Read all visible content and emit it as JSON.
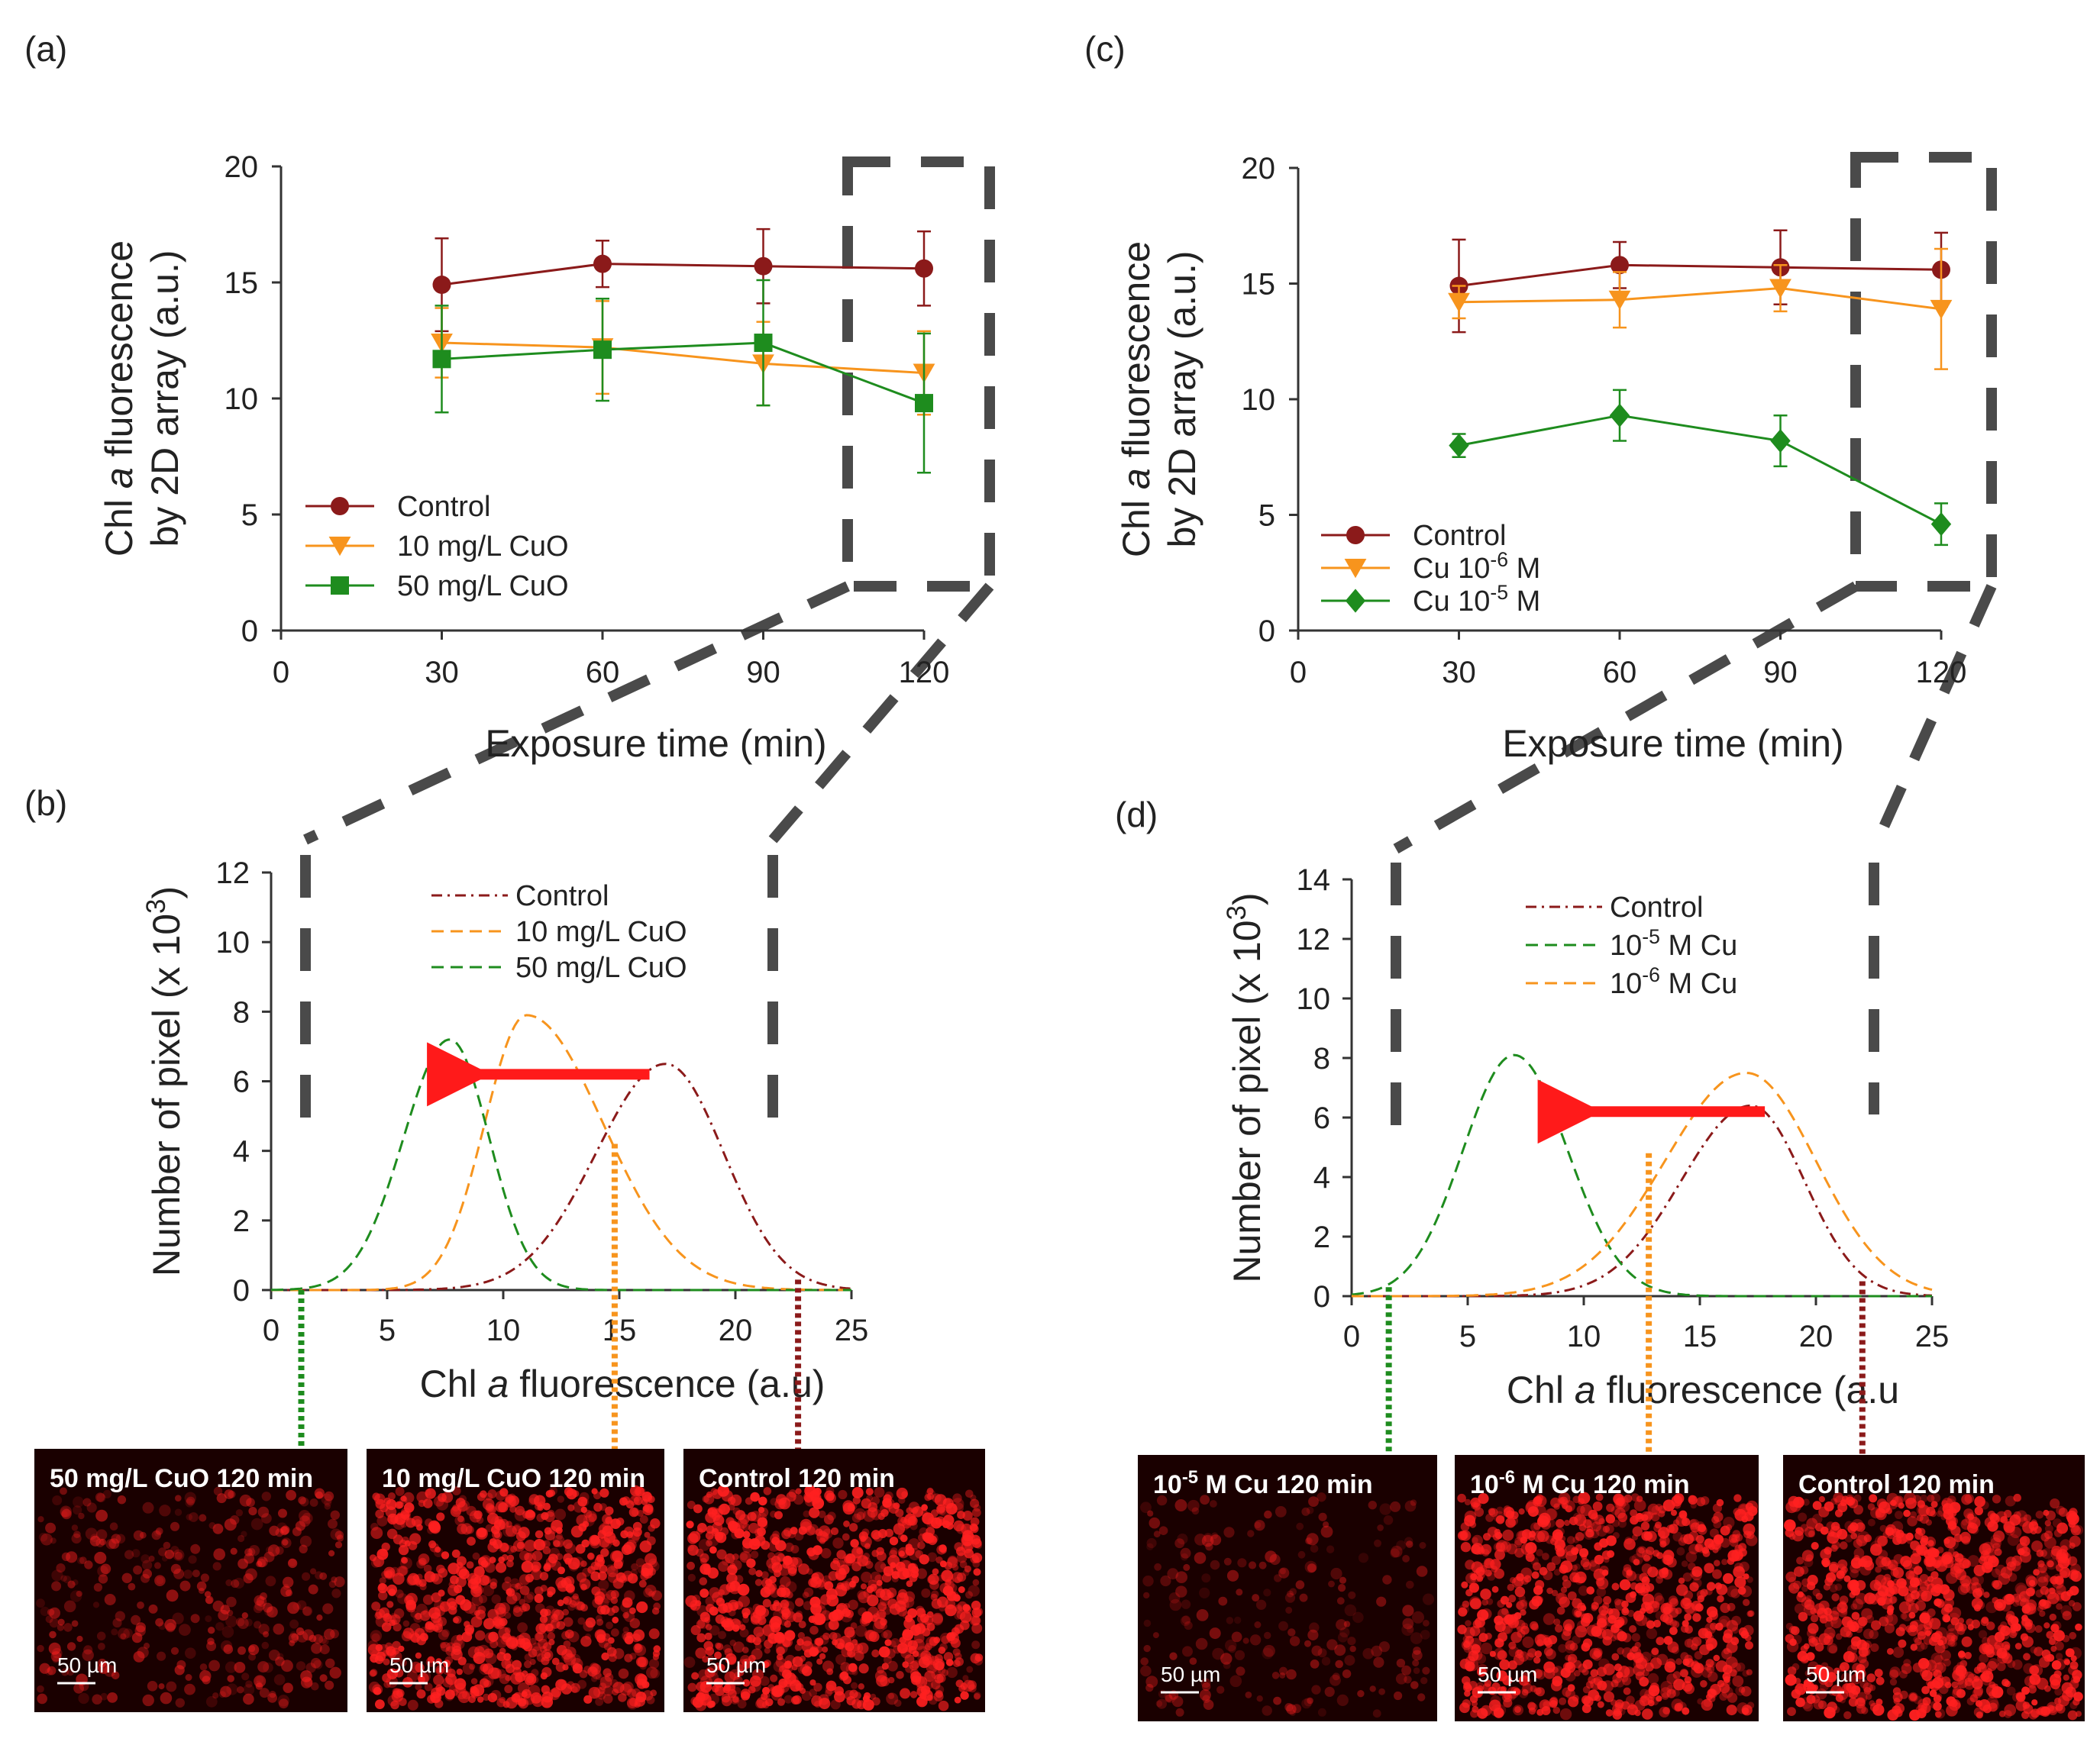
{
  "colors": {
    "control": "#8b1a1a",
    "low": "#f7941d",
    "high": "#1e8c1e",
    "arrow": "#ff1a1a",
    "zoom_box": "#4a4a4a",
    "micro_bg": "#1a0000",
    "micro_cell": "#ff2020"
  },
  "panels": {
    "a": {
      "letter": "(a)"
    },
    "b": {
      "letter": "(b)"
    },
    "c": {
      "letter": "(c)"
    },
    "d": {
      "letter": "(d)"
    }
  },
  "chart_data": [
    {
      "id": "a",
      "type": "line",
      "ylabel_line1": "Chl a fluorescence",
      "ylabel_line2": "by 2D array (a.u.)",
      "xlabel": "Exposure time (min)",
      "x": [
        30,
        60,
        90,
        120
      ],
      "xlim": [
        0,
        120
      ],
      "ylim": [
        0,
        20
      ],
      "xticks": [
        "0",
        "30",
        "60",
        "90",
        "120"
      ],
      "yticks": [
        "0",
        "5",
        "10",
        "15",
        "20"
      ],
      "series": [
        {
          "name": "Control",
          "color_key": "control",
          "marker": "circle",
          "values": [
            14.9,
            15.8,
            15.7,
            15.6
          ],
          "errors": [
            2.0,
            1.0,
            1.6,
            1.6
          ]
        },
        {
          "name": "10 mg/L CuO",
          "color_key": "low",
          "marker": "triangle-down",
          "values": [
            12.4,
            12.2,
            11.5,
            11.1
          ],
          "errors": [
            1.5,
            2.0,
            1.8,
            1.8
          ]
        },
        {
          "name": "50 mg/L CuO",
          "color_key": "high",
          "marker": "square",
          "values": [
            11.7,
            12.1,
            12.4,
            9.8
          ],
          "errors": [
            2.3,
            2.2,
            2.7,
            3.0
          ]
        }
      ]
    },
    {
      "id": "c",
      "type": "line",
      "ylabel_line1": "Chl a fluorescence",
      "ylabel_line2": "by 2D array (a.u.)",
      "xlabel": "Exposure time (min)",
      "x": [
        30,
        60,
        90,
        120
      ],
      "xlim": [
        0,
        120
      ],
      "ylim": [
        0,
        20
      ],
      "xticks": [
        "0",
        "30",
        "60",
        "90",
        "120"
      ],
      "yticks": [
        "0",
        "5",
        "10",
        "15",
        "20"
      ],
      "series": [
        {
          "name": "Control",
          "color_key": "control",
          "marker": "circle",
          "values": [
            14.9,
            15.8,
            15.7,
            15.6
          ],
          "errors": [
            2.0,
            1.0,
            1.6,
            1.6
          ]
        },
        {
          "name": "Cu 10-6 M",
          "label_base": "Cu 10",
          "label_sup": "-6",
          "label_tail": " M",
          "color_key": "low",
          "marker": "triangle-down",
          "values": [
            14.2,
            14.3,
            14.8,
            13.9
          ],
          "errors": [
            0.7,
            1.2,
            1.0,
            2.6
          ]
        },
        {
          "name": "Cu 10-5 M",
          "label_base": "Cu 10",
          "label_sup": "-5",
          "label_tail": " M",
          "color_key": "high",
          "marker": "diamond",
          "values": [
            8.0,
            9.3,
            8.2,
            4.6
          ],
          "errors": [
            0.5,
            1.1,
            1.1,
            0.9
          ]
        }
      ]
    },
    {
      "id": "b",
      "type": "line",
      "ylabel_main": "Number of pixel (x 10",
      "ylabel_sup": "3",
      "ylabel_end": ")",
      "xlabel_pre": "Chl ",
      "xlabel_italic": "a",
      "xlabel_post": " fluorescence (a.u)",
      "xlim": [
        0,
        25
      ],
      "ylim": [
        0,
        12
      ],
      "xticks": [
        "0",
        "5",
        "10",
        "15",
        "20",
        "25"
      ],
      "yticks": [
        "0",
        "2",
        "4",
        "6",
        "8",
        "10",
        "12"
      ],
      "series": [
        {
          "name": "Control",
          "color_key": "control",
          "dash": "dashdot",
          "peak_x": 17,
          "peak_y": 6.5,
          "sigma_left": 3.0,
          "sigma_right": 2.5
        },
        {
          "name": "10 mg/L CuO",
          "color_key": "low",
          "dash": "dash",
          "peak_x": 11,
          "peak_y": 7.9,
          "sigma_left": 1.8,
          "sigma_right": 3.3
        },
        {
          "name": "50 mg/L CuO",
          "color_key": "high",
          "dash": "dash",
          "peak_x": 7.7,
          "peak_y": 7.2,
          "sigma_left": 2.0,
          "sigma_right": 1.7
        }
      ],
      "arrow": {
        "from_x": 16.3,
        "to_x": 7.7,
        "y": 6.2
      }
    },
    {
      "id": "d",
      "type": "line",
      "ylabel_main": "Number of pixel (x 10",
      "ylabel_sup": "3",
      "ylabel_end": ")",
      "xlabel_pre": "Chl ",
      "xlabel_italic": "a",
      "xlabel_post": " fluorescence (a.u",
      "xlim": [
        0,
        25
      ],
      "ylim": [
        0,
        14
      ],
      "xticks": [
        "0",
        "5",
        "10",
        "15",
        "20",
        "25"
      ],
      "yticks": [
        "0",
        "2",
        "4",
        "6",
        "8",
        "10",
        "12",
        "14"
      ],
      "series": [
        {
          "name": "Control",
          "color_key": "control",
          "dash": "dashdot",
          "peak_x": 17.2,
          "peak_y": 6.4,
          "sigma_left": 3.0,
          "sigma_right": 2.3
        },
        {
          "name": "10-5 M Cu",
          "label_base": "10",
          "label_sup": "-5",
          "label_tail": " M Cu",
          "color_key": "high",
          "dash": "dash",
          "peak_x": 7,
          "peak_y": 8.1,
          "sigma_left": 2.2,
          "sigma_right": 2.3
        },
        {
          "name": "10-6 M Cu",
          "label_base": "10",
          "label_sup": "-6",
          "label_tail": " M Cu",
          "color_key": "low",
          "dash": "dash",
          "peak_x": 17,
          "peak_y": 7.5,
          "sigma_left": 3.5,
          "sigma_right": 3.0
        }
      ],
      "arrow": {
        "from_x": 17.8,
        "to_x": 9.0,
        "y": 6.2
      }
    }
  ],
  "micrographs": [
    {
      "label": "50 mg/L CuO 120 min",
      "scale": "50 µm",
      "intensity": 0.28
    },
    {
      "label": "10 mg/L CuO 120 min",
      "scale": "50 µm",
      "intensity": 0.85
    },
    {
      "label": "Control 120 min",
      "scale": "50 µm",
      "intensity": 0.95
    },
    {
      "label_base": "10",
      "label_sup": "-5",
      "label_tail": " M Cu 120 min",
      "scale": "50 µm",
      "intensity": 0.12
    },
    {
      "label_base": "10",
      "label_sup": "-6",
      "label_tail": " M Cu 120 min",
      "scale": "50 µm",
      "intensity": 0.9
    },
    {
      "label": "Control 120 min",
      "scale": "50 µm",
      "intensity": 0.95
    }
  ]
}
